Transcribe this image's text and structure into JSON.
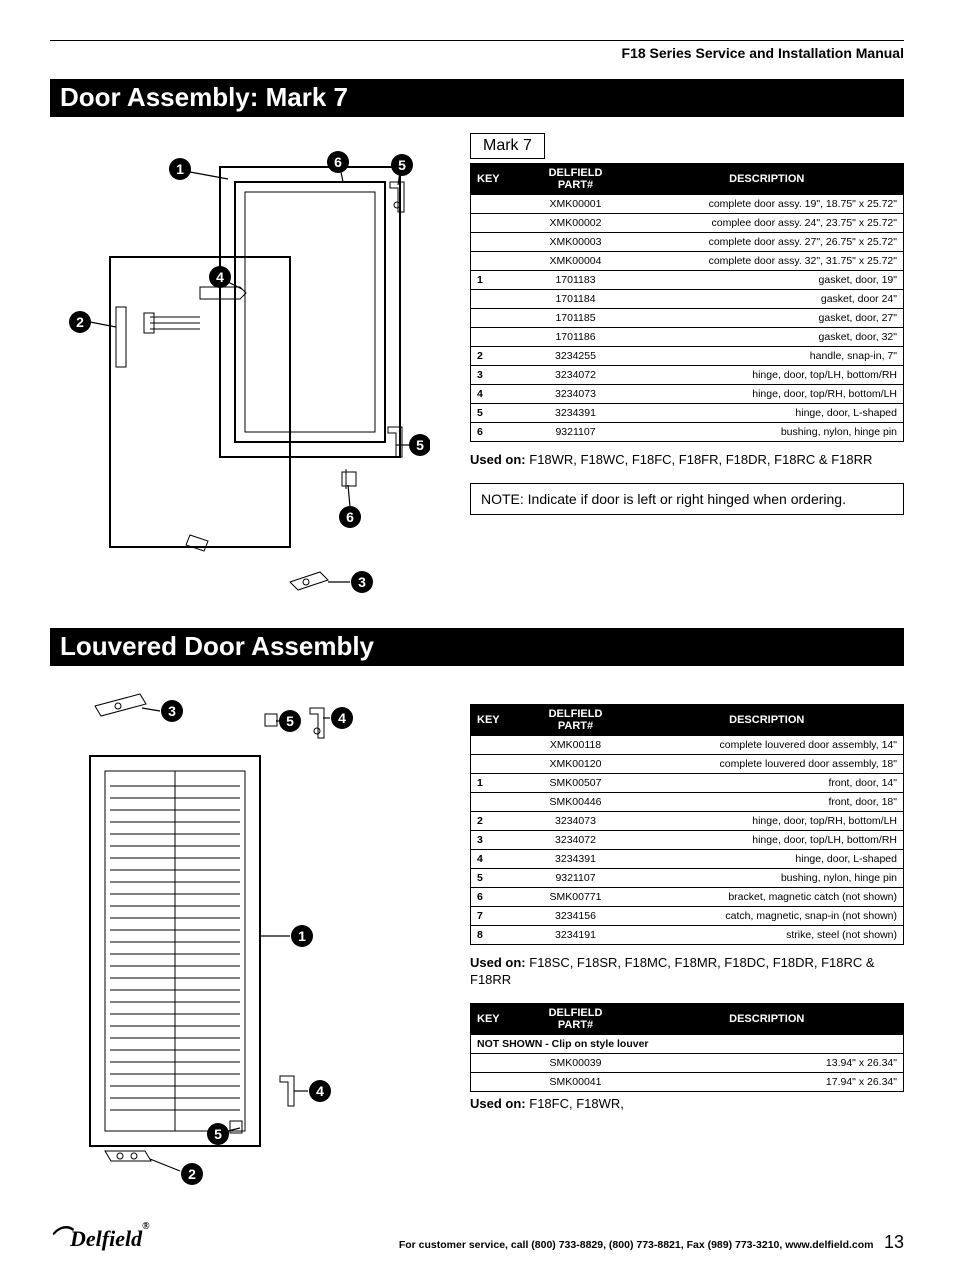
{
  "header": {
    "manual_title": "F18 Series Service and Installation Manual"
  },
  "section1": {
    "title": "Door Assembly: Mark 7",
    "tab": "Mark 7",
    "columns": {
      "key": "KEY",
      "part": "DELFIELD\nPART#",
      "desc": "DESCRIPTION"
    },
    "rows": [
      {
        "key": "",
        "part": "XMK00001",
        "desc": "complete door assy. 19\", 18.75\" x 25.72\""
      },
      {
        "key": "",
        "part": "XMK00002",
        "desc": "complee door assy. 24\", 23.75\" x 25.72\""
      },
      {
        "key": "",
        "part": "XMK00003",
        "desc": "complete door assy. 27\", 26.75\" x 25.72\""
      },
      {
        "key": "",
        "part": "XMK00004",
        "desc": "complete door assy. 32\", 31.75\" x 25.72\""
      },
      {
        "key": "1",
        "part": "1701183",
        "desc": "gasket, door, 19\""
      },
      {
        "key": "",
        "part": "1701184",
        "desc": "gasket, door 24\""
      },
      {
        "key": "",
        "part": "1701185",
        "desc": "gasket, door, 27\""
      },
      {
        "key": "",
        "part": "1701186",
        "desc": "gasket, door, 32\""
      },
      {
        "key": "2",
        "part": "3234255",
        "desc": "handle, snap-in, 7\""
      },
      {
        "key": "3",
        "part": "3234072",
        "desc": "hinge, door, top/LH, bottom/RH"
      },
      {
        "key": "4",
        "part": "3234073",
        "desc": "hinge, door, top/RH, bottom/LH"
      },
      {
        "key": "5",
        "part": "3234391",
        "desc": "hinge, door, L-shaped"
      },
      {
        "key": "6",
        "part": "9321107",
        "desc": "bushing, nylon, hinge pin"
      }
    ],
    "used_on_label": "Used on:",
    "used_on": "F18WR, F18WC, F18FC, F18FR, F18DR, F18RC & F18RR",
    "note": "NOTE: Indicate if door is left or right hinged when ordering."
  },
  "section2": {
    "title": "Louvered Door Assembly",
    "columns": {
      "key": "KEY",
      "part": "DELFIELD\nPART#",
      "desc": "DESCRIPTION"
    },
    "rows": [
      {
        "key": "",
        "part": "XMK00118",
        "desc": "complete louvered door assembly, 14\""
      },
      {
        "key": "",
        "part": "XMK00120",
        "desc": "complete louvered door assembly, 18\""
      },
      {
        "key": "1",
        "part": "SMK00507",
        "desc": "front, door, 14\""
      },
      {
        "key": "",
        "part": "SMK00446",
        "desc": "front, door, 18\""
      },
      {
        "key": "2",
        "part": "3234073",
        "desc": "hinge, door, top/RH, bottom/LH"
      },
      {
        "key": "3",
        "part": "3234072",
        "desc": "hinge, door, top/LH, bottom/RH"
      },
      {
        "key": "4",
        "part": "3234391",
        "desc": "hinge, door, L-shaped"
      },
      {
        "key": "5",
        "part": "9321107",
        "desc": "bushing, nylon, hinge pin"
      },
      {
        "key": "6",
        "part": "SMK00771",
        "desc": "bracket, magnetic catch (not shown)"
      },
      {
        "key": "7",
        "part": "3234156",
        "desc": "catch, magnetic, snap-in (not shown)"
      },
      {
        "key": "8",
        "part": "3234191",
        "desc": "strike, steel (not shown)"
      }
    ],
    "used_on_label": "Used on:",
    "used_on": "F18SC, F18SR, F18MC, F18MR, F18DC, F18DR, F18RC & F18RR",
    "table2_note": "NOT SHOWN - Clip on style louver",
    "rows2": [
      {
        "key": "",
        "part": "SMK00039",
        "desc": "13.94\" x 26.34\""
      },
      {
        "key": "",
        "part": "SMK00041",
        "desc": "17.94\" x 26.34\""
      }
    ],
    "used_on2_label": "Used on:",
    "used_on2": "F18FC, F18WR,"
  },
  "footer": {
    "brand": "Delfield",
    "service_text": "For customer service, call (800) 733-8829, (800) 773-8821, Fax (989) 773-3210, www.delfield.com",
    "page": "13"
  }
}
